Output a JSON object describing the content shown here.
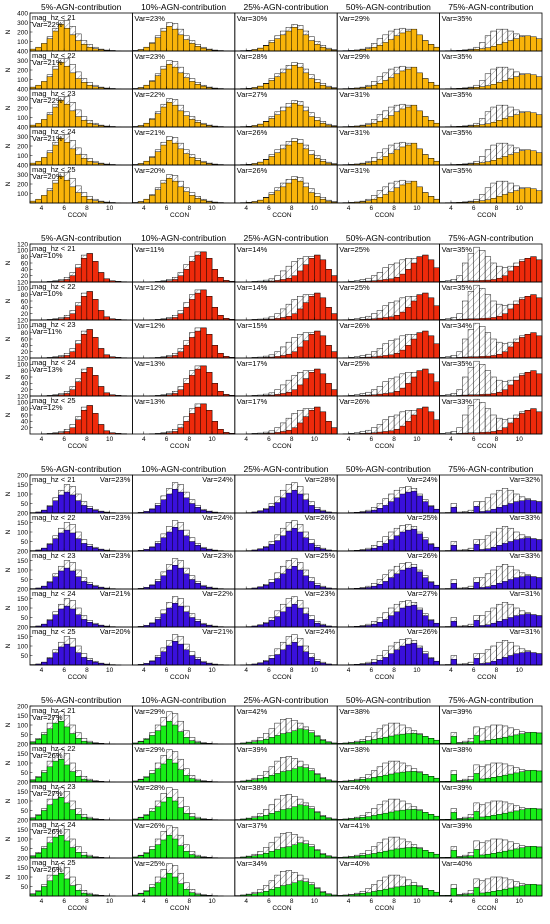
{
  "chart_data": {
    "type": "histogram-grid",
    "column_titles": [
      "5%-AGN-contribution",
      "10%-AGN-contribution",
      "25%-AGN-contribution",
      "50%-AGN-contribution",
      "75%-AGN-contribution"
    ],
    "row_labels": [
      "mag_hz < 21",
      "mag_hz < 22",
      "mag_hz < 23",
      "mag_hz < 24",
      "mag_hz < 25"
    ],
    "xlabel": "CCON",
    "ylabel": "N",
    "xlim": [
      3,
      12
    ],
    "x_ticks": [
      4,
      6,
      8,
      10
    ],
    "x_bins": [
      3.0,
      3.5,
      4.0,
      4.5,
      5.0,
      5.5,
      6.0,
      6.5,
      7.0,
      7.5,
      8.0,
      8.5,
      9.0,
      9.5,
      10.0,
      10.5,
      11.0,
      11.5,
      12.0
    ],
    "blocks": [
      {
        "color": "#f9b40a",
        "ylim": [
          0,
          400
        ],
        "y_ticks": [
          100,
          200,
          300,
          400
        ],
        "note_position": "left",
        "var": [
          [
            "22%",
            "23%",
            "30%",
            "29%",
            "35%"
          ],
          [
            "21%",
            "23%",
            "28%",
            "29%",
            "35%"
          ],
          [
            "22%",
            "22%",
            "27%",
            "31%",
            "35%"
          ],
          [
            "21%",
            "21%",
            "26%",
            "31%",
            "35%"
          ],
          [
            "20%",
            "20%",
            "26%",
            "31%",
            "35%"
          ]
        ],
        "filled": [
          [
            20,
            40,
            80,
            130,
            210,
            280,
            240,
            170,
            110,
            70,
            40,
            25,
            15,
            8,
            5,
            3,
            2,
            1
          ],
          [
            5,
            15,
            40,
            80,
            140,
            210,
            260,
            230,
            170,
            120,
            80,
            50,
            30,
            15,
            8,
            4,
            2,
            1
          ],
          [
            2,
            4,
            8,
            15,
            30,
            55,
            90,
            130,
            170,
            210,
            250,
            230,
            170,
            110,
            70,
            40,
            20,
            10
          ],
          [
            3,
            4,
            6,
            10,
            15,
            25,
            40,
            60,
            90,
            120,
            160,
            190,
            210,
            230,
            170,
            110,
            70,
            40
          ],
          [
            2,
            3,
            4,
            6,
            8,
            12,
            18,
            25,
            35,
            50,
            70,
            90,
            110,
            130,
            150,
            160,
            150,
            130
          ]
        ],
        "open": [
          [
            15,
            35,
            75,
            150,
            240,
            320,
            320,
            260,
            180,
            110,
            70,
            40,
            20,
            10,
            5,
            3,
            2,
            1
          ],
          [
            5,
            15,
            40,
            90,
            160,
            240,
            300,
            290,
            230,
            160,
            110,
            70,
            40,
            20,
            10,
            5,
            3,
            1
          ],
          [
            2,
            4,
            8,
            15,
            30,
            60,
            110,
            160,
            210,
            250,
            280,
            270,
            210,
            150,
            100,
            60,
            30,
            15
          ],
          [
            3,
            4,
            6,
            10,
            20,
            40,
            80,
            130,
            170,
            210,
            230,
            240,
            230,
            210,
            160,
            110,
            70,
            40
          ],
          [
            3,
            4,
            5,
            8,
            12,
            20,
            40,
            90,
            160,
            210,
            230,
            230,
            210,
            180,
            160,
            150,
            140,
            120
          ]
        ]
      },
      {
        "color": "#ee2a0b",
        "ylim": [
          0,
          120
        ],
        "y_ticks": [
          20,
          40,
          60,
          80,
          100,
          120
        ],
        "note_position": "left",
        "var": [
          [
            "10%",
            "11%",
            "14%",
            "25%",
            "35%"
          ],
          [
            "10%",
            "12%",
            "14%",
            "25%",
            "35%"
          ],
          [
            "11%",
            "12%",
            "15%",
            "26%",
            "34%"
          ],
          [
            "13%",
            "13%",
            "17%",
            "25%",
            "35%"
          ],
          [
            "12%",
            "13%",
            "17%",
            "26%",
            "33%"
          ]
        ],
        "filled": [
          [
            0,
            0,
            0,
            1,
            2,
            4,
            8,
            20,
            45,
            75,
            90,
            65,
            30,
            10,
            4,
            2,
            1,
            0
          ],
          [
            0,
            0,
            0,
            0,
            1,
            2,
            4,
            8,
            20,
            40,
            65,
            85,
            95,
            75,
            40,
            15,
            5,
            2
          ],
          [
            0,
            0,
            0,
            1,
            1,
            2,
            3,
            5,
            8,
            12,
            20,
            35,
            55,
            75,
            85,
            70,
            40,
            20
          ],
          [
            0,
            0,
            1,
            1,
            2,
            3,
            4,
            6,
            8,
            10,
            15,
            25,
            40,
            60,
            80,
            85,
            70,
            45
          ],
          [
            0,
            1,
            1,
            2,
            3,
            4,
            4,
            5,
            6,
            8,
            12,
            20,
            35,
            50,
            65,
            75,
            80,
            70
          ]
        ],
        "open": [
          [
            0,
            0,
            1,
            2,
            4,
            8,
            15,
            30,
            55,
            85,
            90,
            65,
            30,
            10,
            4,
            2,
            1,
            0
          ],
          [
            0,
            0,
            0,
            1,
            2,
            4,
            8,
            15,
            30,
            55,
            80,
            95,
            95,
            75,
            40,
            15,
            5,
            2
          ],
          [
            0,
            0,
            1,
            2,
            3,
            6,
            10,
            20,
            35,
            50,
            65,
            75,
            80,
            80,
            85,
            70,
            40,
            20
          ],
          [
            0,
            1,
            2,
            4,
            8,
            12,
            20,
            30,
            45,
            55,
            60,
            70,
            75,
            75,
            80,
            85,
            70,
            45
          ],
          [
            2,
            4,
            8,
            20,
            60,
            90,
            110,
            100,
            80,
            60,
            50,
            45,
            50,
            60,
            70,
            75,
            80,
            70
          ]
        ]
      },
      {
        "color": "#3a10dc",
        "ylim": [
          0,
          200
        ],
        "y_ticks": [
          50,
          100,
          150,
          200
        ],
        "note_position": "right",
        "var": [
          [
            "23%",
            "24%",
            "28%",
            "24%",
            "32%"
          ],
          [
            "23%",
            "24%",
            "26%",
            "25%",
            "33%"
          ],
          [
            "23%",
            "23%",
            "25%",
            "26%",
            "33%"
          ],
          [
            "21%",
            "22%",
            "23%",
            "27%",
            "31%"
          ],
          [
            "20%",
            "21%",
            "24%",
            "26%",
            "31%"
          ]
        ],
        "filled": [
          [
            2,
            5,
            15,
            35,
            65,
            95,
            110,
            95,
            65,
            40,
            25,
            15,
            8,
            4,
            2,
            1,
            0,
            0
          ],
          [
            1,
            3,
            8,
            20,
            40,
            70,
            100,
            125,
            110,
            80,
            50,
            30,
            15,
            8,
            4,
            2,
            1,
            0
          ],
          [
            0,
            1,
            2,
            5,
            10,
            20,
            35,
            55,
            80,
            105,
            120,
            100,
            70,
            40,
            20,
            10,
            5,
            2
          ],
          [
            1,
            1,
            2,
            3,
            5,
            8,
            15,
            25,
            40,
            60,
            80,
            100,
            110,
            115,
            90,
            60,
            35,
            20
          ],
          [
            1,
            1,
            30,
            2,
            3,
            4,
            35,
            8,
            12,
            20,
            30,
            40,
            50,
            60,
            65,
            70,
            65,
            60
          ]
        ],
        "open": [
          [
            2,
            5,
            15,
            40,
            80,
            120,
            150,
            140,
            100,
            60,
            35,
            20,
            10,
            5,
            2,
            1,
            0,
            0
          ],
          [
            1,
            3,
            8,
            22,
            50,
            90,
            130,
            160,
            150,
            110,
            70,
            40,
            20,
            10,
            5,
            2,
            1,
            0
          ],
          [
            0,
            1,
            2,
            5,
            12,
            25,
            50,
            85,
            120,
            150,
            160,
            140,
            100,
            60,
            30,
            15,
            5,
            2
          ],
          [
            1,
            1,
            2,
            4,
            8,
            15,
            30,
            50,
            75,
            100,
            120,
            135,
            140,
            130,
            100,
            70,
            40,
            20
          ],
          [
            2,
            3,
            50,
            5,
            8,
            15,
            60,
            60,
            80,
            100,
            120,
            130,
            120,
            100,
            85,
            75,
            65,
            60
          ]
        ]
      },
      {
        "color": "#18ee18",
        "ylim": [
          0,
          200
        ],
        "y_ticks": [
          50,
          100,
          150,
          200
        ],
        "note_position": "left",
        "var": [
          [
            "27%",
            "29%",
            "42%",
            "38%",
            "39%"
          ],
          [
            "26%",
            "29%",
            "39%",
            "38%",
            "38%"
          ],
          [
            "27%",
            "28%",
            "38%",
            "40%",
            "39%"
          ],
          [
            "26%",
            "26%",
            "37%",
            "41%",
            "39%"
          ],
          [
            "26%",
            "25%",
            "34%",
            "40%",
            "40%"
          ]
        ],
        "filled": [
          [
            10,
            25,
            50,
            80,
            110,
            120,
            90,
            55,
            30,
            15,
            8,
            4,
            2,
            1,
            0,
            0,
            0,
            0
          ],
          [
            5,
            12,
            25,
            45,
            70,
            95,
            120,
            100,
            65,
            35,
            18,
            8,
            4,
            2,
            1,
            0,
            0,
            0
          ],
          [
            2,
            5,
            8,
            12,
            18,
            25,
            35,
            45,
            55,
            60,
            70,
            80,
            75,
            60,
            40,
            20,
            10,
            5
          ],
          [
            3,
            5,
            7,
            10,
            14,
            18,
            24,
            30,
            36,
            42,
            48,
            52,
            55,
            56,
            50,
            40,
            30,
            20
          ],
          [
            3,
            4,
            40,
            6,
            8,
            12,
            45,
            16,
            20,
            25,
            30,
            36,
            42,
            48,
            54,
            60,
            62,
            58
          ]
        ],
        "open": [
          [
            12,
            30,
            60,
            110,
            150,
            170,
            150,
            100,
            60,
            30,
            15,
            8,
            4,
            2,
            1,
            0,
            0,
            0
          ],
          [
            5,
            15,
            30,
            60,
            100,
            140,
            170,
            160,
            120,
            70,
            35,
            15,
            8,
            4,
            2,
            1,
            0,
            0
          ],
          [
            2,
            5,
            10,
            20,
            35,
            55,
            80,
            110,
            130,
            135,
            125,
            110,
            90,
            70,
            45,
            25,
            12,
            5
          ],
          [
            3,
            5,
            8,
            15,
            25,
            40,
            60,
            80,
            100,
            110,
            110,
            100,
            85,
            70,
            55,
            40,
            30,
            20
          ],
          [
            3,
            4,
            60,
            8,
            15,
            30,
            90,
            80,
            90,
            100,
            100,
            95,
            85,
            75,
            65,
            60,
            60,
            58
          ]
        ]
      }
    ]
  }
}
